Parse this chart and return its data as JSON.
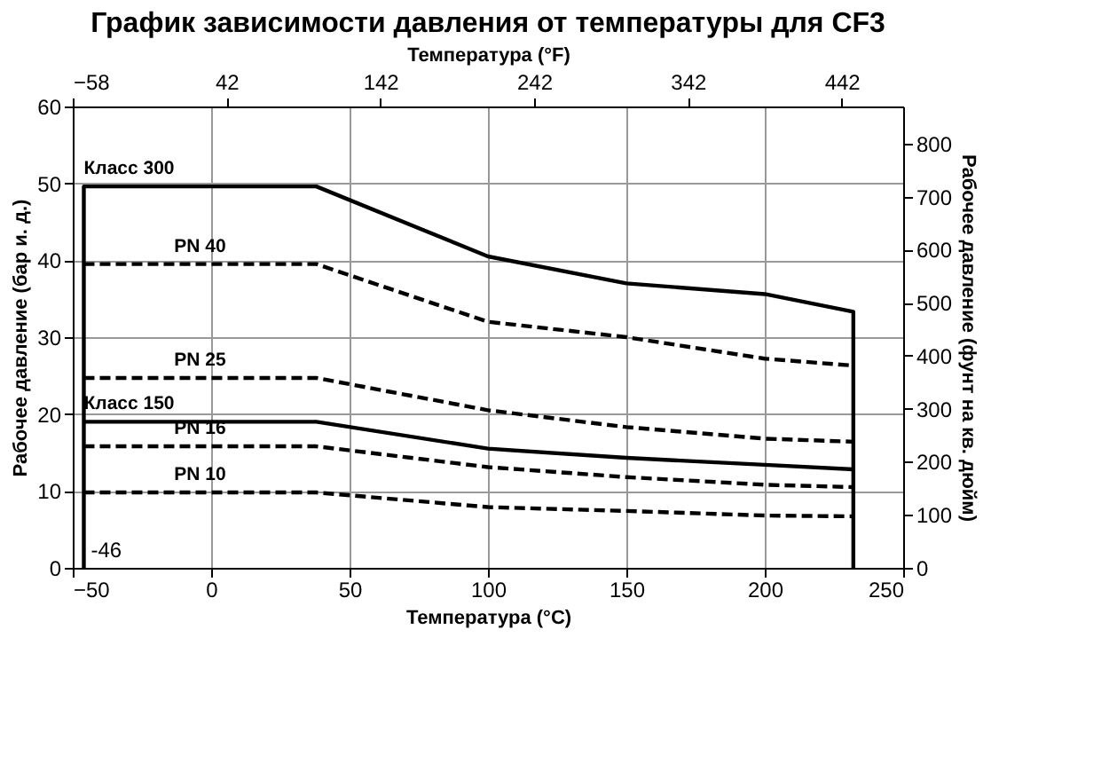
{
  "chart_data": {
    "type": "line",
    "title": "График зависимости давления от температуры для CF3",
    "xlabel": "Температура (°C)",
    "x2label": "Температура (°F)",
    "ylabel": "Рабочее давление (бар и. д.)",
    "y2label": "Рабочее давление (фунт на кв. дюйм)",
    "xlim": [
      -50,
      250
    ],
    "xticks": [
      -50,
      0,
      50,
      100,
      150,
      200,
      250
    ],
    "x2lim": [
      -58,
      482
    ],
    "x2ticks": [
      -58,
      42,
      142,
      242,
      342,
      442
    ],
    "ylim": [
      0,
      60
    ],
    "yticks": [
      0,
      10,
      20,
      30,
      40,
      50,
      60
    ],
    "y2lim": [
      0,
      870.2
    ],
    "y2ticks": [
      0,
      100,
      200,
      300,
      400,
      500,
      600,
      700,
      800
    ],
    "grid": true,
    "annotations": [
      {
        "text": "-46",
        "x": -46,
        "y": 0
      }
    ],
    "series": [
      {
        "name": "Класс 300",
        "color": "#000000",
        "line_style": "solid",
        "x": [
          -46,
          -46,
          38,
          100,
          150,
          200,
          232,
          232
        ],
        "values": [
          0,
          49.6,
          49.6,
          40.5,
          37.0,
          35.6,
          33.3,
          0
        ]
      },
      {
        "name": "PN 40",
        "color": "#000000",
        "line_style": "dashed",
        "x": [
          -46,
          38,
          100,
          150,
          200,
          232
        ],
        "values": [
          39.5,
          39.5,
          32,
          30,
          27.2,
          26.3
        ]
      },
      {
        "name": "PN 25",
        "color": "#000000",
        "line_style": "dashed",
        "x": [
          -46,
          38,
          100,
          150,
          200,
          232
        ],
        "values": [
          24.7,
          24.7,
          20.5,
          18.3,
          16.8,
          16.4
        ]
      },
      {
        "name": "Класс 150",
        "color": "#000000",
        "line_style": "solid",
        "x": [
          -46,
          38,
          100,
          150,
          200,
          232
        ],
        "values": [
          19.0,
          19.0,
          15.5,
          14.3,
          13.4,
          12.8
        ]
      },
      {
        "name": "PN 16",
        "color": "#000000",
        "line_style": "dashed",
        "x": [
          -46,
          38,
          100,
          150,
          200,
          232
        ],
        "values": [
          15.8,
          15.8,
          13.1,
          11.8,
          10.8,
          10.5
        ]
      },
      {
        "name": "PN 10",
        "color": "#000000",
        "line_style": "dashed",
        "x": [
          -46,
          38,
          100,
          150,
          200,
          232
        ],
        "values": [
          9.8,
          9.8,
          7.9,
          7.4,
          6.8,
          6.7
        ]
      }
    ]
  }
}
